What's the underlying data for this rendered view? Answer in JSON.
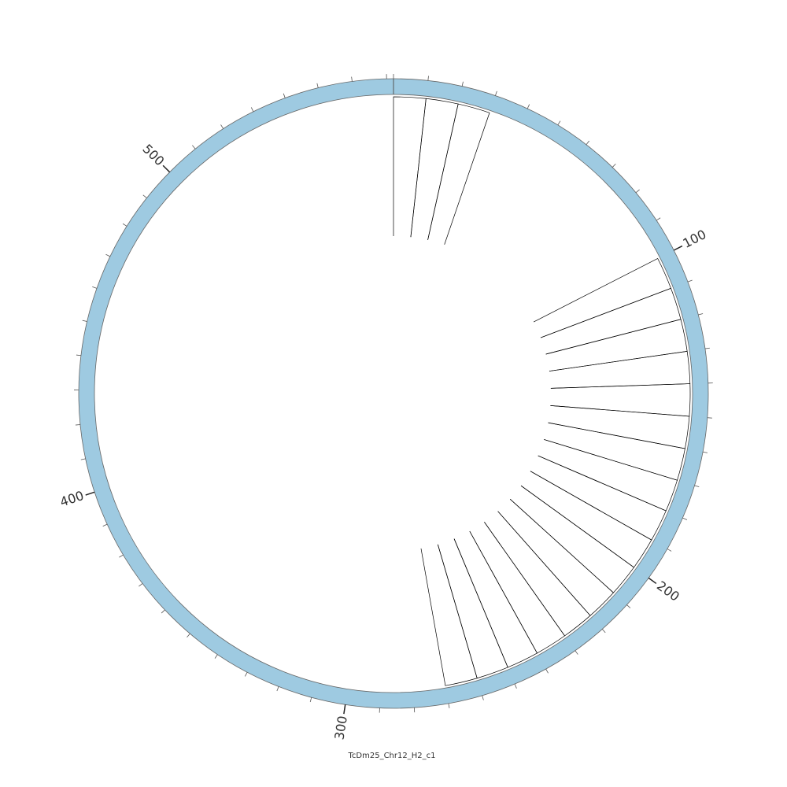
{
  "chart_data": {
    "type": "circos",
    "title": "TcDm25_Chr12_H2_c1",
    "xlim": [
      0,
      572
    ],
    "xticks": [
      100,
      200,
      300,
      400,
      500
    ],
    "minor_xticks": [
      0,
      10,
      20,
      30,
      40,
      50,
      60,
      70,
      80,
      90,
      100,
      110,
      120,
      130,
      140,
      150,
      160,
      170,
      180,
      190,
      200,
      210,
      220,
      230,
      240,
      250,
      260,
      270,
      280,
      290,
      300,
      310,
      320,
      330,
      340,
      350,
      360,
      370,
      380,
      390,
      400,
      410,
      420,
      430,
      440,
      450,
      460,
      470,
      480,
      490,
      500,
      510,
      520,
      530,
      540,
      550,
      560,
      570
    ],
    "ring_color": "#9ecae1",
    "segments": [
      [
        0,
        10
      ],
      [
        10,
        20
      ],
      [
        20,
        30
      ],
      [
        100,
        110
      ],
      [
        110,
        120
      ],
      [
        120,
        130
      ],
      [
        130,
        140
      ],
      [
        140,
        150
      ],
      [
        150,
        160
      ],
      [
        160,
        170
      ],
      [
        170,
        180
      ],
      [
        180,
        190
      ],
      [
        190,
        200
      ],
      [
        200,
        210
      ],
      [
        210,
        220
      ],
      [
        220,
        230
      ],
      [
        230,
        240
      ],
      [
        240,
        250
      ],
      [
        250,
        260
      ],
      [
        260,
        270
      ]
    ]
  }
}
